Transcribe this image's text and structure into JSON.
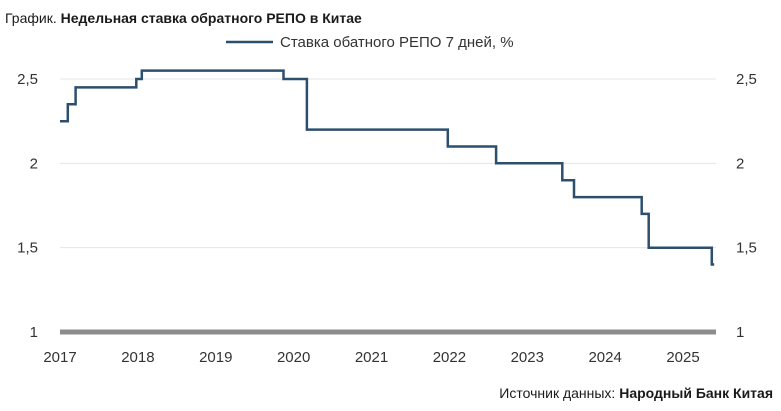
{
  "header": {
    "lead": "График.",
    "title": "Недельная ставка обратного РЕПО в Китае"
  },
  "source": {
    "lead": "Источник данных:",
    "name": "Народный Банк Китая"
  },
  "colors": {
    "line": "#2c4f6e",
    "grid": "#e4e4e4",
    "baseline": "#8c8c8c"
  },
  "chart_data": {
    "type": "line",
    "title": "Недельная ставка обратного РЕПО в Китае",
    "xlabel": "",
    "ylabel": "",
    "xlim": [
      2017,
      2025.55
    ],
    "ylim": [
      1,
      2.6
    ],
    "grid": true,
    "legend_position": "top-center",
    "x_ticks": [
      2017,
      2018,
      2019,
      2020,
      2021,
      2022,
      2023,
      2024,
      2025
    ],
    "x_tick_labels": [
      "2017",
      "2018",
      "2019",
      "2020",
      "2021",
      "2022",
      "2023",
      "2024",
      "2025"
    ],
    "y_ticks": [
      1,
      1.5,
      2,
      2.5
    ],
    "y_tick_labels": [
      "1",
      "1,5",
      "2",
      "2,5"
    ],
    "series": [
      {
        "name": "Ставка обатного РЕПО 7 дней, %",
        "step": "post",
        "x": [
          2017.0,
          2017.1,
          2017.2,
          2017.98,
          2018.05,
          2018.1,
          2019.87,
          2020.17,
          2021.98,
          2022.6,
          2023.45,
          2023.6,
          2023.7,
          2024.47,
          2024.56,
          2024.63,
          2024.7,
          2025.37,
          2025.4
        ],
        "values": [
          2.25,
          2.35,
          2.45,
          2.5,
          2.55,
          2.55,
          2.5,
          2.2,
          2.1,
          2.0,
          1.9,
          1.8,
          1.8,
          1.7,
          1.5,
          1.5,
          1.5,
          1.4,
          1.4
        ]
      }
    ]
  }
}
